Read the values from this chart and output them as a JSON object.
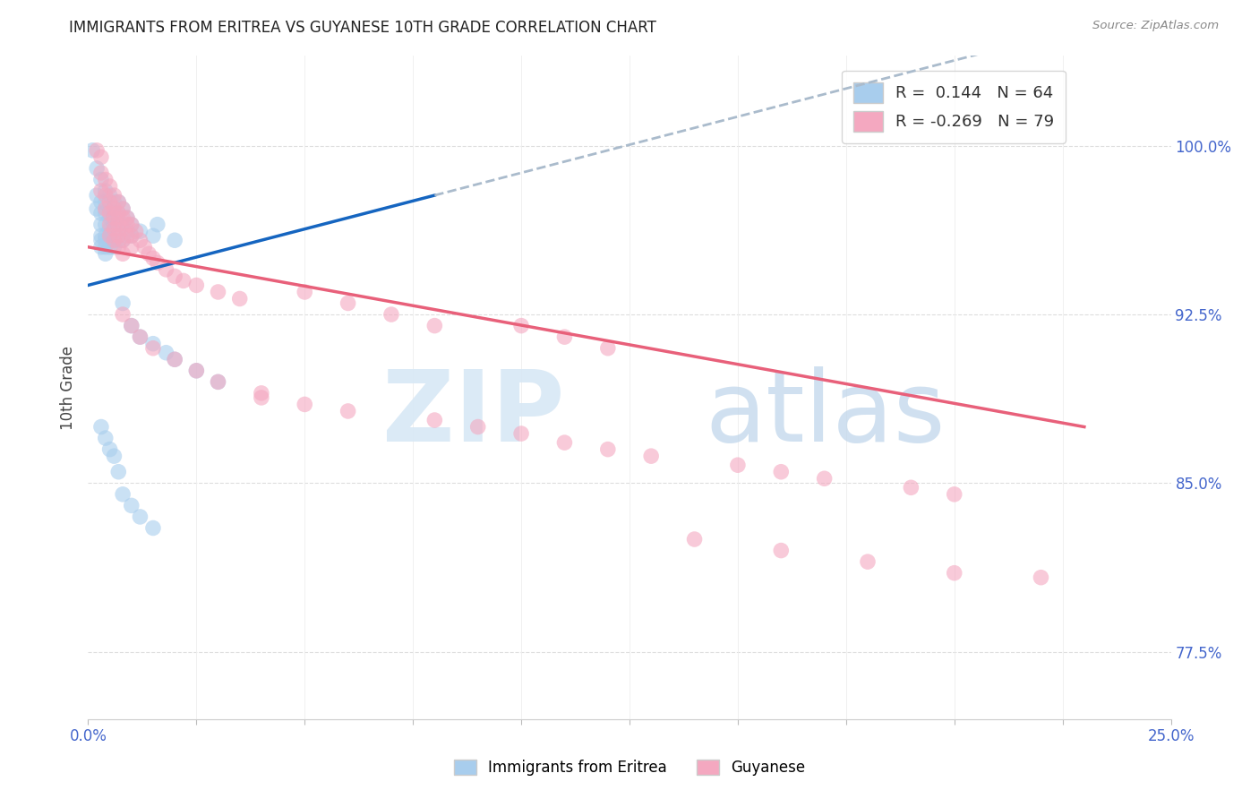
{
  "title": "IMMIGRANTS FROM ERITREA VS GUYANESE 10TH GRADE CORRELATION CHART",
  "source": "Source: ZipAtlas.com",
  "ylabel": "10th Grade",
  "r_eritrea": 0.144,
  "n_eritrea": 64,
  "r_guyanese": -0.269,
  "n_guyanese": 79,
  "color_eritrea": "#A8CDED",
  "color_guyanese": "#F4A8C0",
  "color_trend_eritrea": "#1565C0",
  "color_trend_guyanese": "#E8607A",
  "color_dashed": "#AABBCC",
  "xlim": [
    0.0,
    0.25
  ],
  "ylim": [
    0.745,
    1.04
  ],
  "yticks": [
    0.775,
    0.85,
    0.925,
    1.0
  ],
  "ytick_labels": [
    "77.5%",
    "85.0%",
    "92.5%",
    "100.0%"
  ],
  "xtick_positions": [
    0.0,
    0.025,
    0.05,
    0.075,
    0.1,
    0.125,
    0.15,
    0.175,
    0.2,
    0.225,
    0.25
  ],
  "eritrea_pts": [
    [
      0.001,
      0.998
    ],
    [
      0.002,
      0.99
    ],
    [
      0.002,
      0.978
    ],
    [
      0.002,
      0.972
    ],
    [
      0.003,
      0.985
    ],
    [
      0.003,
      0.975
    ],
    [
      0.003,
      0.97
    ],
    [
      0.003,
      0.965
    ],
    [
      0.003,
      0.96
    ],
    [
      0.003,
      0.958
    ],
    [
      0.003,
      0.955
    ],
    [
      0.004,
      0.98
    ],
    [
      0.004,
      0.975
    ],
    [
      0.004,
      0.97
    ],
    [
      0.004,
      0.965
    ],
    [
      0.004,
      0.96
    ],
    [
      0.004,
      0.958
    ],
    [
      0.004,
      0.955
    ],
    [
      0.004,
      0.952
    ],
    [
      0.005,
      0.978
    ],
    [
      0.005,
      0.972
    ],
    [
      0.005,
      0.968
    ],
    [
      0.005,
      0.963
    ],
    [
      0.005,
      0.96
    ],
    [
      0.005,
      0.958
    ],
    [
      0.005,
      0.955
    ],
    [
      0.006,
      0.975
    ],
    [
      0.006,
      0.97
    ],
    [
      0.006,
      0.965
    ],
    [
      0.006,
      0.962
    ],
    [
      0.006,
      0.958
    ],
    [
      0.006,
      0.955
    ],
    [
      0.007,
      0.975
    ],
    [
      0.007,
      0.97
    ],
    [
      0.007,
      0.965
    ],
    [
      0.007,
      0.958
    ],
    [
      0.007,
      0.855
    ],
    [
      0.008,
      0.972
    ],
    [
      0.008,
      0.965
    ],
    [
      0.008,
      0.958
    ],
    [
      0.009,
      0.968
    ],
    [
      0.009,
      0.962
    ],
    [
      0.01,
      0.965
    ],
    [
      0.01,
      0.96
    ],
    [
      0.012,
      0.962
    ],
    [
      0.015,
      0.96
    ],
    [
      0.016,
      0.965
    ],
    [
      0.02,
      0.958
    ],
    [
      0.008,
      0.93
    ],
    [
      0.01,
      0.92
    ],
    [
      0.012,
      0.915
    ],
    [
      0.015,
      0.912
    ],
    [
      0.018,
      0.908
    ],
    [
      0.02,
      0.905
    ],
    [
      0.025,
      0.9
    ],
    [
      0.03,
      0.895
    ],
    [
      0.003,
      0.875
    ],
    [
      0.004,
      0.87
    ],
    [
      0.005,
      0.865
    ],
    [
      0.006,
      0.862
    ],
    [
      0.008,
      0.845
    ],
    [
      0.01,
      0.84
    ],
    [
      0.012,
      0.835
    ],
    [
      0.015,
      0.83
    ]
  ],
  "guyanese_pts": [
    [
      0.002,
      0.998
    ],
    [
      0.003,
      0.995
    ],
    [
      0.003,
      0.988
    ],
    [
      0.003,
      0.98
    ],
    [
      0.004,
      0.985
    ],
    [
      0.004,
      0.978
    ],
    [
      0.004,
      0.972
    ],
    [
      0.005,
      0.982
    ],
    [
      0.005,
      0.975
    ],
    [
      0.005,
      0.97
    ],
    [
      0.005,
      0.965
    ],
    [
      0.005,
      0.96
    ],
    [
      0.006,
      0.978
    ],
    [
      0.006,
      0.972
    ],
    [
      0.006,
      0.968
    ],
    [
      0.006,
      0.963
    ],
    [
      0.006,
      0.958
    ],
    [
      0.007,
      0.975
    ],
    [
      0.007,
      0.97
    ],
    [
      0.007,
      0.965
    ],
    [
      0.007,
      0.96
    ],
    [
      0.007,
      0.955
    ],
    [
      0.008,
      0.972
    ],
    [
      0.008,
      0.968
    ],
    [
      0.008,
      0.963
    ],
    [
      0.008,
      0.958
    ],
    [
      0.008,
      0.952
    ],
    [
      0.009,
      0.968
    ],
    [
      0.009,
      0.965
    ],
    [
      0.009,
      0.96
    ],
    [
      0.01,
      0.965
    ],
    [
      0.01,
      0.96
    ],
    [
      0.01,
      0.955
    ],
    [
      0.011,
      0.962
    ],
    [
      0.012,
      0.958
    ],
    [
      0.013,
      0.955
    ],
    [
      0.014,
      0.952
    ],
    [
      0.015,
      0.95
    ],
    [
      0.016,
      0.948
    ],
    [
      0.018,
      0.945
    ],
    [
      0.02,
      0.942
    ],
    [
      0.022,
      0.94
    ],
    [
      0.025,
      0.938
    ],
    [
      0.03,
      0.935
    ],
    [
      0.035,
      0.932
    ],
    [
      0.008,
      0.925
    ],
    [
      0.01,
      0.92
    ],
    [
      0.012,
      0.915
    ],
    [
      0.015,
      0.91
    ],
    [
      0.02,
      0.905
    ],
    [
      0.025,
      0.9
    ],
    [
      0.03,
      0.895
    ],
    [
      0.04,
      0.89
    ],
    [
      0.05,
      0.935
    ],
    [
      0.06,
      0.93
    ],
    [
      0.07,
      0.925
    ],
    [
      0.08,
      0.92
    ],
    [
      0.04,
      0.888
    ],
    [
      0.05,
      0.885
    ],
    [
      0.06,
      0.882
    ],
    [
      0.08,
      0.878
    ],
    [
      0.09,
      0.875
    ],
    [
      0.1,
      0.872
    ],
    [
      0.11,
      0.868
    ],
    [
      0.12,
      0.865
    ],
    [
      0.13,
      0.862
    ],
    [
      0.15,
      0.858
    ],
    [
      0.16,
      0.855
    ],
    [
      0.17,
      0.852
    ],
    [
      0.19,
      0.848
    ],
    [
      0.2,
      0.845
    ],
    [
      0.1,
      0.92
    ],
    [
      0.11,
      0.915
    ],
    [
      0.12,
      0.91
    ],
    [
      0.14,
      0.825
    ],
    [
      0.16,
      0.82
    ],
    [
      0.18,
      0.815
    ],
    [
      0.2,
      0.81
    ],
    [
      0.22,
      0.808
    ]
  ]
}
